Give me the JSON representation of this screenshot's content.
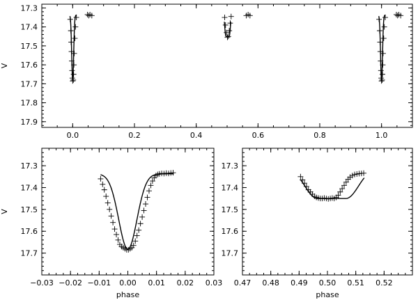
{
  "chart_data": [
    {
      "type": "scatter",
      "panel": "full-phase",
      "title": "",
      "xlabel": "",
      "ylabel": "V",
      "xlim": [
        -0.1,
        1.1
      ],
      "ylim": [
        17.93,
        17.28
      ],
      "x_tick_labels": [
        "0.0",
        "0.2",
        "0.4",
        "0.6",
        "0.8",
        "1.0"
      ],
      "y_tick_labels": [
        "17.3",
        "17.4",
        "17.5",
        "17.6",
        "17.7",
        "17.8",
        "17.9"
      ],
      "series": [
        {
          "marker": "plus",
          "points": [
            [
              -0.008,
              17.36
            ],
            [
              -0.006,
              17.42
            ],
            [
              -0.005,
              17.48
            ],
            [
              -0.004,
              17.53
            ],
            [
              -0.003,
              17.58
            ],
            [
              -0.002,
              17.63
            ],
            [
              -0.001,
              17.67
            ],
            [
              0.0,
              17.685
            ],
            [
              0.002,
              17.68
            ],
            [
              0.003,
              17.65
            ],
            [
              0.004,
              17.6
            ],
            [
              0.005,
              17.54
            ],
            [
              0.007,
              17.46
            ],
            [
              0.009,
              17.4
            ],
            [
              0.012,
              17.35
            ],
            [
              0.048,
              17.335
            ],
            [
              0.052,
              17.34
            ],
            [
              0.056,
              17.335
            ],
            [
              0.062,
              17.34
            ],
            [
              0.492,
              17.35
            ],
            [
              0.495,
              17.39
            ],
            [
              0.498,
              17.43
            ],
            [
              0.501,
              17.455
            ],
            [
              0.504,
              17.45
            ],
            [
              0.507,
              17.42
            ],
            [
              0.51,
              17.38
            ],
            [
              0.513,
              17.345
            ],
            [
              0.562,
              17.34
            ],
            [
              0.568,
              17.335
            ],
            [
              0.574,
              17.34
            ],
            [
              0.992,
              17.36
            ],
            [
              0.994,
              17.42
            ],
            [
              0.995,
              17.48
            ],
            [
              0.996,
              17.53
            ],
            [
              0.997,
              17.58
            ],
            [
              0.998,
              17.63
            ],
            [
              0.999,
              17.67
            ],
            [
              1.0,
              17.685
            ],
            [
              1.002,
              17.68
            ],
            [
              1.003,
              17.65
            ],
            [
              1.004,
              17.6
            ],
            [
              1.005,
              17.54
            ],
            [
              1.007,
              17.46
            ],
            [
              1.009,
              17.4
            ],
            [
              1.012,
              17.35
            ],
            [
              1.048,
              17.335
            ],
            [
              1.052,
              17.34
            ],
            [
              1.056,
              17.335
            ],
            [
              1.062,
              17.34
            ]
          ]
        }
      ]
    },
    {
      "type": "scatter",
      "panel": "primary-eclipse",
      "title": "",
      "xlabel": "phase",
      "ylabel": "V",
      "xlim": [
        -0.03,
        0.03
      ],
      "ylim": [
        17.8,
        17.22
      ],
      "x_tick_labels": [
        "−0.03",
        "−0.02",
        "−0.01",
        "0.00",
        "0.01",
        "0.02",
        "0.03"
      ],
      "y_tick_labels": [
        "17.3",
        "17.4",
        "17.5",
        "17.6",
        "17.7"
      ],
      "series": [
        {
          "marker": "plus",
          "points": [
            [
              -0.0095,
              17.36
            ],
            [
              -0.0088,
              17.385
            ],
            [
              -0.0082,
              17.41
            ],
            [
              -0.0076,
              17.44
            ],
            [
              -0.007,
              17.47
            ],
            [
              -0.0064,
              17.5
            ],
            [
              -0.0058,
              17.53
            ],
            [
              -0.0052,
              17.56
            ],
            [
              -0.0046,
              17.59
            ],
            [
              -0.004,
              17.615
            ],
            [
              -0.0034,
              17.64
            ],
            [
              -0.0028,
              17.66
            ],
            [
              -0.0022,
              17.67
            ],
            [
              -0.0016,
              17.675
            ],
            [
              -0.001,
              17.68
            ],
            [
              -0.0004,
              17.685
            ],
            [
              0.0002,
              17.685
            ],
            [
              0.0008,
              17.68
            ],
            [
              0.0014,
              17.675
            ],
            [
              0.002,
              17.665
            ],
            [
              0.0026,
              17.645
            ],
            [
              0.0032,
              17.62
            ],
            [
              0.0038,
              17.595
            ],
            [
              0.0044,
              17.565
            ],
            [
              0.005,
              17.535
            ],
            [
              0.0056,
              17.505
            ],
            [
              0.0062,
              17.475
            ],
            [
              0.0068,
              17.445
            ],
            [
              0.0074,
              17.415
            ],
            [
              0.008,
              17.39
            ],
            [
              0.0086,
              17.37
            ],
            [
              0.0092,
              17.355
            ],
            [
              0.0098,
              17.345
            ],
            [
              0.0104,
              17.34
            ],
            [
              0.011,
              17.337
            ],
            [
              0.0118,
              17.335
            ],
            [
              0.0126,
              17.336
            ],
            [
              0.0134,
              17.334
            ],
            [
              0.0142,
              17.335
            ],
            [
              0.015,
              17.333
            ],
            [
              0.0158,
              17.332
            ]
          ]
        }
      ]
    },
    {
      "type": "scatter",
      "panel": "secondary-eclipse",
      "title": "",
      "xlabel": "phase",
      "ylabel": "",
      "xlim": [
        0.47,
        0.53
      ],
      "ylim": [
        17.8,
        17.22
      ],
      "x_tick_labels": [
        "0.47",
        "0.48",
        "0.49",
        "0.50",
        "0.51",
        "0.52"
      ],
      "y_tick_labels": [
        "17.3",
        "17.4",
        "17.5",
        "17.6",
        "17.7"
      ],
      "series": [
        {
          "marker": "plus",
          "points": [
            [
              0.4905,
              17.35
            ],
            [
              0.4912,
              17.365
            ],
            [
              0.4919,
              17.38
            ],
            [
              0.4926,
              17.395
            ],
            [
              0.4933,
              17.41
            ],
            [
              0.494,
              17.42
            ],
            [
              0.4947,
              17.43
            ],
            [
              0.4954,
              17.44
            ],
            [
              0.4961,
              17.445
            ],
            [
              0.4968,
              17.448
            ],
            [
              0.4975,
              17.45
            ],
            [
              0.4982,
              17.45
            ],
            [
              0.4989,
              17.448
            ],
            [
              0.4996,
              17.45
            ],
            [
              0.5003,
              17.452
            ],
            [
              0.501,
              17.45
            ],
            [
              0.5017,
              17.448
            ],
            [
              0.5024,
              17.45
            ],
            [
              0.5031,
              17.445
            ],
            [
              0.5038,
              17.435
            ],
            [
              0.5045,
              17.42
            ],
            [
              0.5052,
              17.405
            ],
            [
              0.5059,
              17.39
            ],
            [
              0.5066,
              17.375
            ],
            [
              0.5073,
              17.362
            ],
            [
              0.508,
              17.352
            ],
            [
              0.5088,
              17.345
            ],
            [
              0.5096,
              17.34
            ],
            [
              0.5104,
              17.338
            ],
            [
              0.5112,
              17.336
            ],
            [
              0.512,
              17.335
            ],
            [
              0.5128,
              17.334
            ]
          ]
        }
      ]
    }
  ]
}
